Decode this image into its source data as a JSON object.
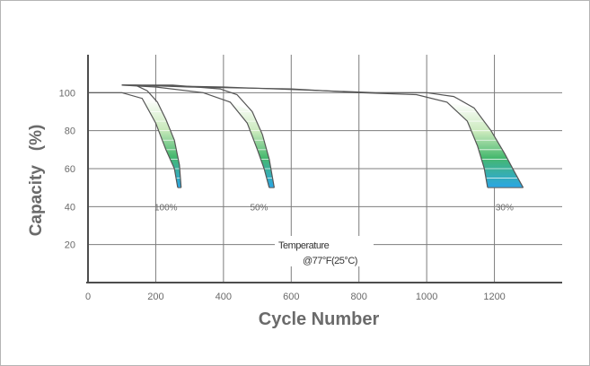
{
  "chart_data": {
    "type": "line",
    "xlabel": "Cycle Number",
    "ylabel": "Capacity (%)",
    "xlim": [
      0,
      1400
    ],
    "ylim": [
      0,
      120
    ],
    "x_ticks": [
      0,
      200,
      400,
      600,
      800,
      1000,
      1200
    ],
    "y_ticks": [
      20,
      40,
      60,
      80,
      100
    ],
    "grid": true,
    "annotation": {
      "line1": "Temperature",
      "line2": "@77°F(25°C)"
    },
    "series": [
      {
        "label": "100%",
        "base": [
          [
            0,
            100
          ],
          [
            100,
            100
          ],
          [
            160,
            97
          ],
          [
            200,
            84
          ],
          [
            230,
            70
          ],
          [
            255,
            60
          ],
          [
            265,
            50
          ]
        ],
        "shoulder": [
          [
            100,
            104
          ],
          [
            140,
            104
          ],
          [
            175,
            101
          ],
          [
            205,
            95
          ],
          [
            230,
            86
          ],
          [
            255,
            75
          ],
          [
            270,
            62
          ],
          [
            275,
            50
          ]
        ],
        "label_at": [
          230,
          38
        ]
      },
      {
        "label": "50%",
        "base": [
          [
            100,
            104
          ],
          [
            200,
            103
          ],
          [
            340,
            100
          ],
          [
            420,
            95
          ],
          [
            470,
            84
          ],
          [
            500,
            70
          ],
          [
            520,
            60
          ],
          [
            535,
            50
          ]
        ],
        "shoulder": [
          [
            100,
            104
          ],
          [
            250,
            104
          ],
          [
            390,
            102
          ],
          [
            440,
            99
          ],
          [
            485,
            90
          ],
          [
            515,
            78
          ],
          [
            535,
            65
          ],
          [
            550,
            50
          ]
        ],
        "label_at": [
          505,
          38
        ]
      },
      {
        "label": "30%",
        "base": [
          [
            140,
            104
          ],
          [
            300,
            103
          ],
          [
            600,
            102
          ],
          [
            800,
            100
          ],
          [
            970,
            99
          ],
          [
            1060,
            95
          ],
          [
            1120,
            85
          ],
          [
            1150,
            72
          ],
          [
            1170,
            60
          ],
          [
            1180,
            50
          ]
        ],
        "shoulder": [
          [
            100,
            104
          ],
          [
            400,
            103
          ],
          [
            700,
            101
          ],
          [
            850,
            100
          ],
          [
            1000,
            100
          ],
          [
            1080,
            98
          ],
          [
            1140,
            92
          ],
          [
            1190,
            80
          ],
          [
            1230,
            68
          ],
          [
            1260,
            58
          ],
          [
            1285,
            50
          ]
        ],
        "label_at": [
          1230,
          38
        ]
      }
    ],
    "colors": {
      "axis": "#4d4d4d",
      "grid": "#7d7d7d",
      "curve": "#555555",
      "band_top": "#ffffff",
      "band_mid": "#b3e0a6",
      "band_green": "#46b86e",
      "band_bottom": "#2aa6e6"
    }
  }
}
